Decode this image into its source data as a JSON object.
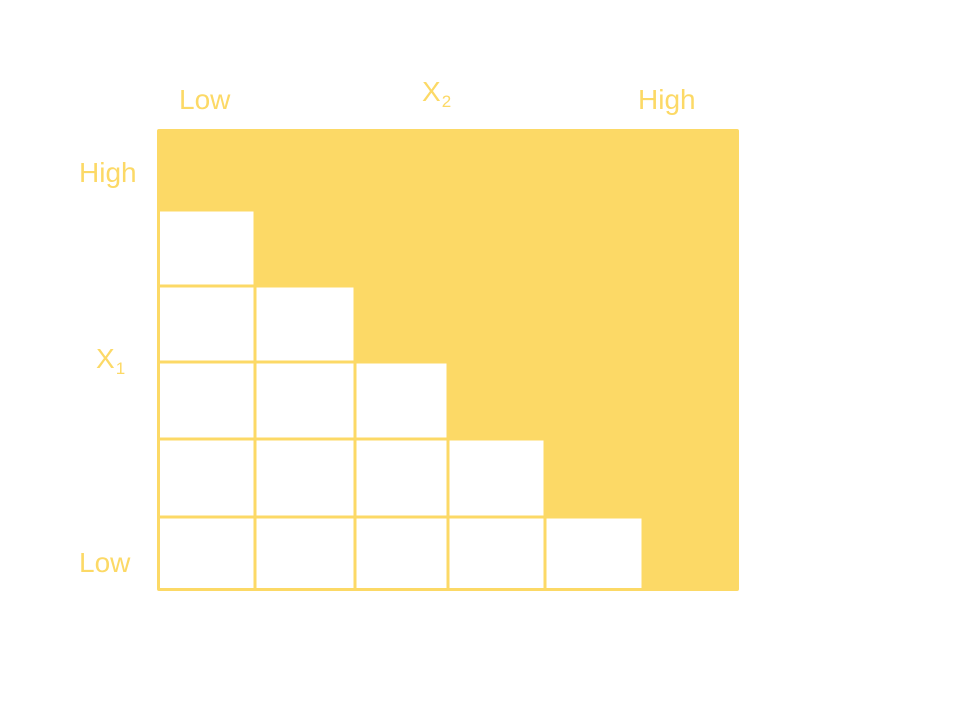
{
  "colors": {
    "fill": "#FCD966",
    "background": "#FFFFFF"
  },
  "labels": {
    "x2_low": "Low",
    "x2_high": "High",
    "x2_name": "X",
    "x2_sub": "2",
    "x1_high": "High",
    "x1_low": "Low",
    "x1_name": "X",
    "x1_sub": "1"
  },
  "grid": {
    "rows_from_bottom_white_cells": [
      5,
      4,
      3,
      2,
      1
    ],
    "columns": 6,
    "rows": 6
  }
}
